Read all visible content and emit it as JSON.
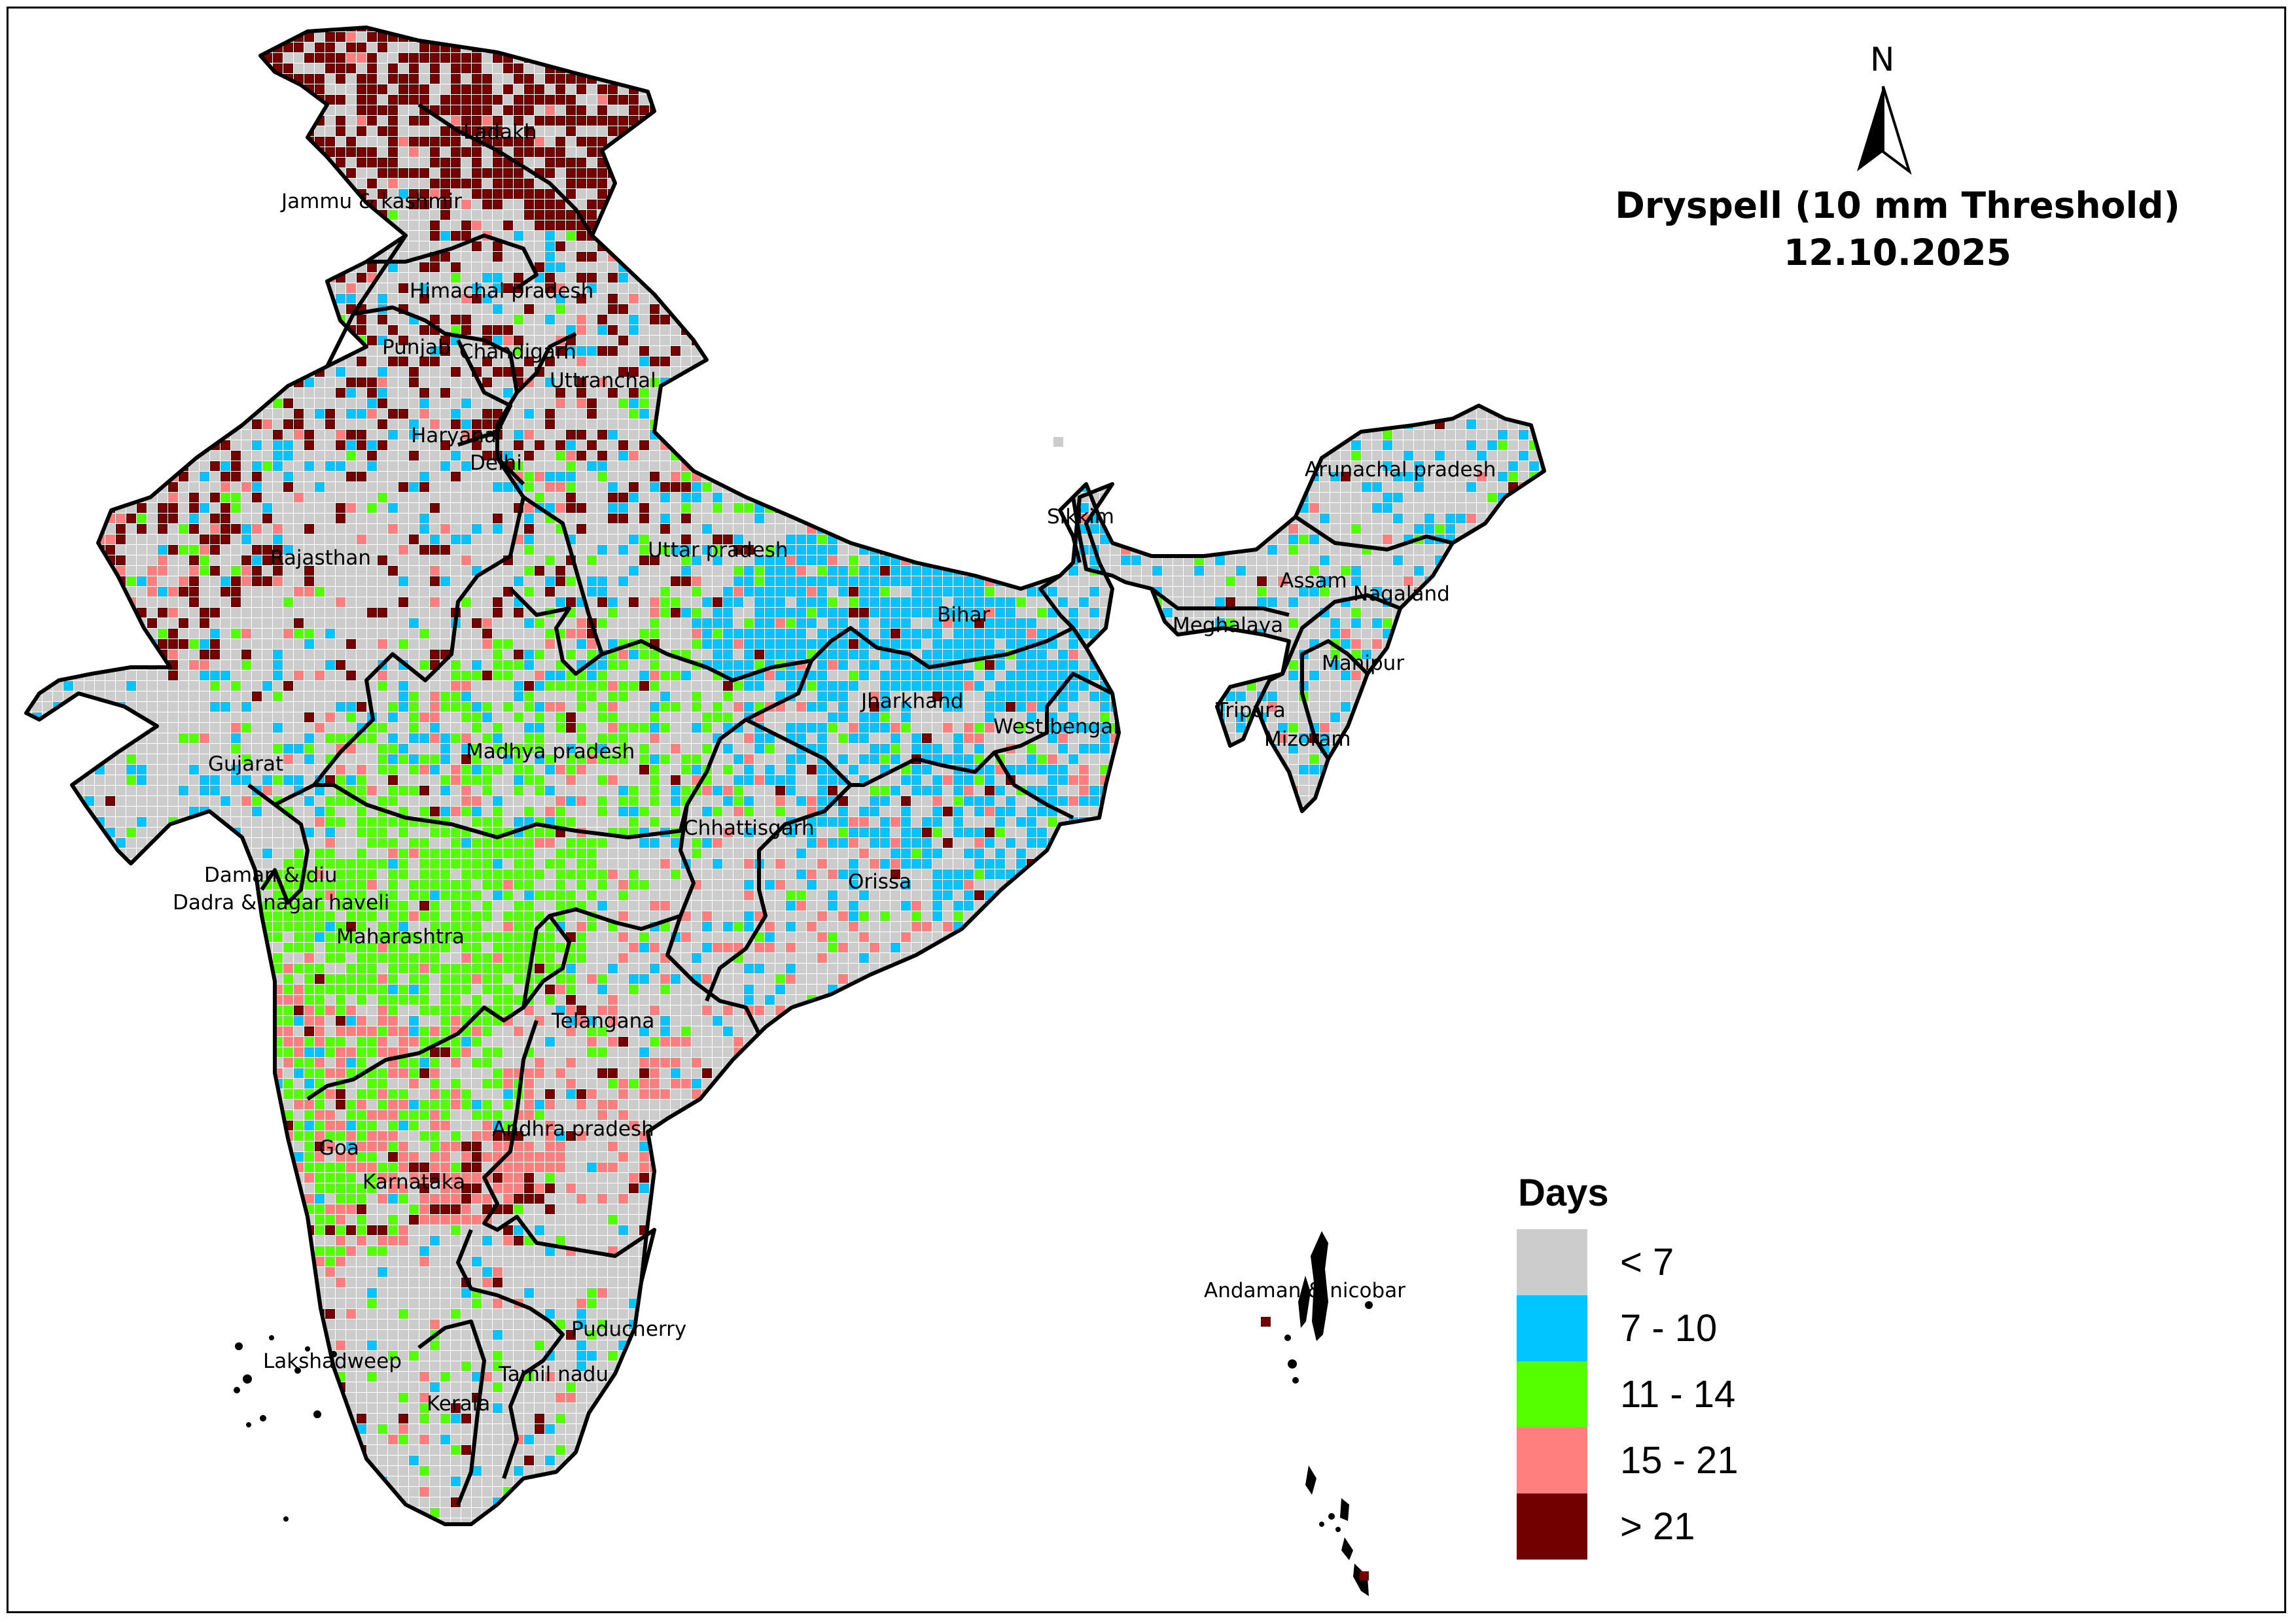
{
  "title": {
    "line1": "Dryspell (10 mm Threshold)",
    "line2": "12.10.2025"
  },
  "north_arrow": {
    "label": "N",
    "icon": "north-arrow-icon"
  },
  "legend": {
    "title": "Days",
    "classes": [
      {
        "label": "< 7",
        "color": "#cccccc"
      },
      {
        "label": "7 - 10",
        "color": "#00c5ff"
      },
      {
        "label": "11 - 14",
        "color": "#55ff00"
      },
      {
        "label": "15 - 21",
        "color": "#ff7f7f"
      },
      {
        "label": "> 21",
        "color": "#730000"
      }
    ]
  },
  "states": [
    "Ladakh",
    "Jammu & kashmir",
    "Himachal pradesh",
    "Punjab",
    "Chandigarh",
    "Uttranchal",
    "Haryana",
    "Delhi",
    "Rajasthan",
    "Uttar pradesh",
    "Bihar",
    "Sikkim",
    "Arunachal pradesh",
    "Assam",
    "Nagaland",
    "Meghalaya",
    "Manipur",
    "Tripura",
    "Mizoram",
    "West bengal",
    "Jharkhand",
    "Gujarat",
    "Madhya pradesh",
    "Chhattisgarh",
    "Orissa",
    "Daman & diu",
    "Dadra & nagar haveli",
    "Maharashtra",
    "Telangana",
    "Andhra pradesh",
    "Goa",
    "Karnataka",
    "Puducherry",
    "Lakshadweep",
    "Tamil nadu",
    "Kerala",
    "Andaman & nicobar"
  ]
}
